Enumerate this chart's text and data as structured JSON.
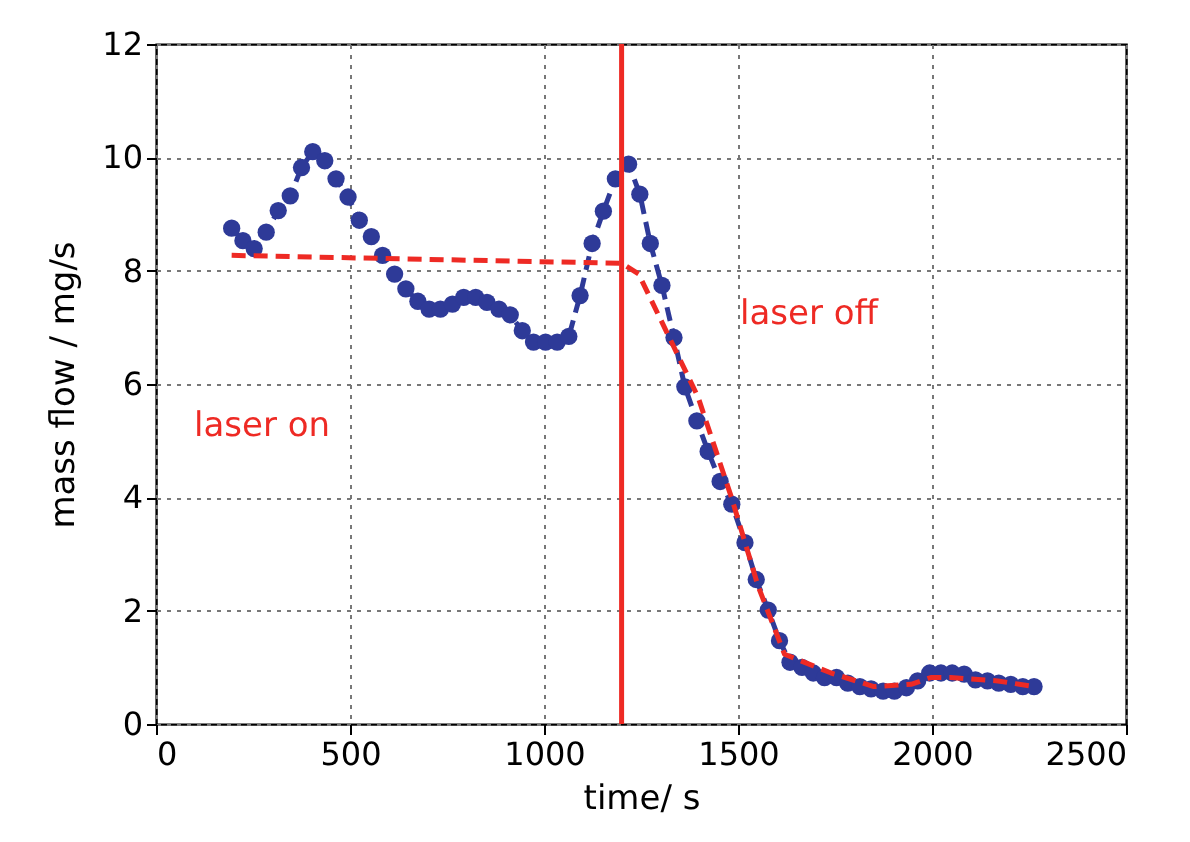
{
  "chart_data": {
    "type": "line",
    "xlabel": "time/ s",
    "ylabel": "mass flow / mg/s",
    "xlim": [
      0,
      2500
    ],
    "xticks": [
      0,
      500,
      1000,
      1500,
      2000,
      2500
    ],
    "ylim": [
      0,
      12
    ],
    "yticks": [
      0,
      2,
      4,
      6,
      8,
      10,
      12
    ],
    "grid": true,
    "series": [
      {
        "color": "#2e3a98",
        "marker": "circle",
        "line_style": "dashed",
        "x": [
          195,
          224,
          253,
          284,
          315,
          346,
          375,
          404,
          435,
          464,
          495,
          524,
          555,
          584,
          615,
          644,
          675,
          704,
          733,
          764,
          793,
          824,
          853,
          884,
          913,
          944,
          973,
          1004,
          1034,
          1064,
          1093,
          1124,
          1153,
          1184,
          1218,
          1247,
          1274,
          1304,
          1335,
          1363,
          1394,
          1423,
          1454,
          1484,
          1518,
          1547,
          1578,
          1607,
          1634,
          1665,
          1694,
          1723,
          1754,
          1783,
          1814,
          1843,
          1874,
          1903,
          1934,
          1963,
          1994,
          2023,
          2052,
          2083,
          2112,
          2143,
          2172,
          2203,
          2234,
          2263
        ],
        "values": [
          8.75,
          8.53,
          8.39,
          8.68,
          9.06,
          9.32,
          9.82,
          10.1,
          9.94,
          9.62,
          9.3,
          8.89,
          8.6,
          8.27,
          7.94,
          7.68,
          7.46,
          7.32,
          7.32,
          7.41,
          7.53,
          7.53,
          7.44,
          7.32,
          7.22,
          6.94,
          6.74,
          6.74,
          6.74,
          6.84,
          7.56,
          8.48,
          9.05,
          9.62,
          9.88,
          9.35,
          8.48,
          7.74,
          6.82,
          5.95,
          5.35,
          4.81,
          4.28,
          3.88,
          3.2,
          2.55,
          2.01,
          1.47,
          1.09,
          1.0,
          0.9,
          0.82,
          0.82,
          0.72,
          0.66,
          0.62,
          0.58,
          0.58,
          0.64,
          0.76,
          0.9,
          0.9,
          0.9,
          0.88,
          0.78,
          0.76,
          0.72,
          0.7,
          0.66,
          0.66
        ]
      },
      {
        "color": "#ee2a24",
        "marker": "none",
        "line_style": "dashed",
        "x": [
          195,
          1200,
          1244,
          1397,
          1484,
          1552,
          1620,
          1740,
          1850,
          1946,
          1997,
          2048,
          2170,
          2263
        ],
        "values": [
          8.27,
          8.13,
          7.94,
          5.77,
          3.98,
          2.43,
          1.23,
          0.9,
          0.66,
          0.7,
          0.82,
          0.82,
          0.76,
          0.66
        ]
      }
    ],
    "ref_lines": [
      {
        "axis": "x",
        "value": 1200,
        "color": "#ee2a24",
        "line_style": "solid"
      }
    ],
    "annotations": [
      "laser on",
      "laser off"
    ]
  }
}
